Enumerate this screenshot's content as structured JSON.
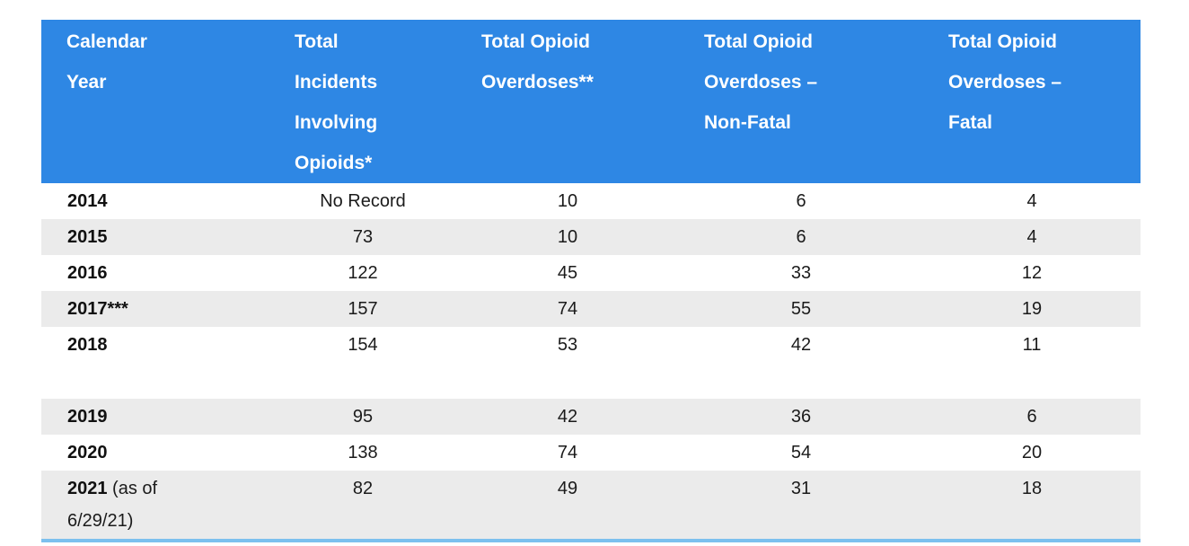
{
  "table": {
    "headers": [
      [
        "Calendar",
        "Year"
      ],
      [
        "Total",
        "Incidents",
        "Involving",
        "Opioids*"
      ],
      [
        "Total Opioid",
        "Overdoses**"
      ],
      [
        "Total Opioid",
        "Overdoses –",
        "Non-Fatal"
      ],
      [
        "Total Opioid",
        "Overdoses –",
        "Fatal"
      ]
    ],
    "rows": [
      {
        "year": "2014",
        "incidents": "No Record",
        "overdoses": "10",
        "non_fatal": "6",
        "fatal": "4"
      },
      {
        "year": "2015",
        "incidents": "73",
        "overdoses": "10",
        "non_fatal": "6",
        "fatal": "4"
      },
      {
        "year": "2016",
        "incidents": "122",
        "overdoses": "45",
        "non_fatal": "33",
        "fatal": "12"
      },
      {
        "year": "2017***",
        "incidents": "157",
        "overdoses": "74",
        "non_fatal": "55",
        "fatal": "19"
      },
      {
        "year": "2018",
        "incidents": "154",
        "overdoses": "53",
        "non_fatal": "42",
        "fatal": "11"
      },
      {
        "year": "2019",
        "incidents": "95",
        "overdoses": "42",
        "non_fatal": "36",
        "fatal": "6"
      },
      {
        "year": "2020",
        "incidents": "138",
        "overdoses": "74",
        "non_fatal": "54",
        "fatal": "20"
      },
      {
        "year": "2021",
        "year_note": " (as of\n6/29/21)",
        "incidents": "82",
        "overdoses": "49",
        "non_fatal": "31",
        "fatal": "18"
      }
    ],
    "colors": {
      "header_bg": "#2e87e4",
      "header_text": "#ffffff",
      "stripe_bg": "#ebebeb",
      "bottom_border": "#7cc0ee",
      "body_text": "#1b1b1b"
    }
  },
  "chart_data": {
    "type": "table",
    "columns": [
      "Calendar Year",
      "Total Incidents Involving Opioids*",
      "Total Opioid Overdoses**",
      "Total Opioid Overdoses – Non-Fatal",
      "Total Opioid Overdoses – Fatal"
    ],
    "rows": [
      [
        "2014",
        "No Record",
        10,
        6,
        4
      ],
      [
        "2015",
        73,
        10,
        6,
        4
      ],
      [
        "2016",
        122,
        45,
        33,
        12
      ],
      [
        "2017***",
        157,
        74,
        55,
        19
      ],
      [
        "2018",
        154,
        53,
        42,
        11
      ],
      [
        "2019",
        95,
        42,
        36,
        6
      ],
      [
        "2020",
        138,
        74,
        54,
        20
      ],
      [
        "2021 (as of 6/29/21)",
        82,
        49,
        31,
        18
      ]
    ]
  }
}
